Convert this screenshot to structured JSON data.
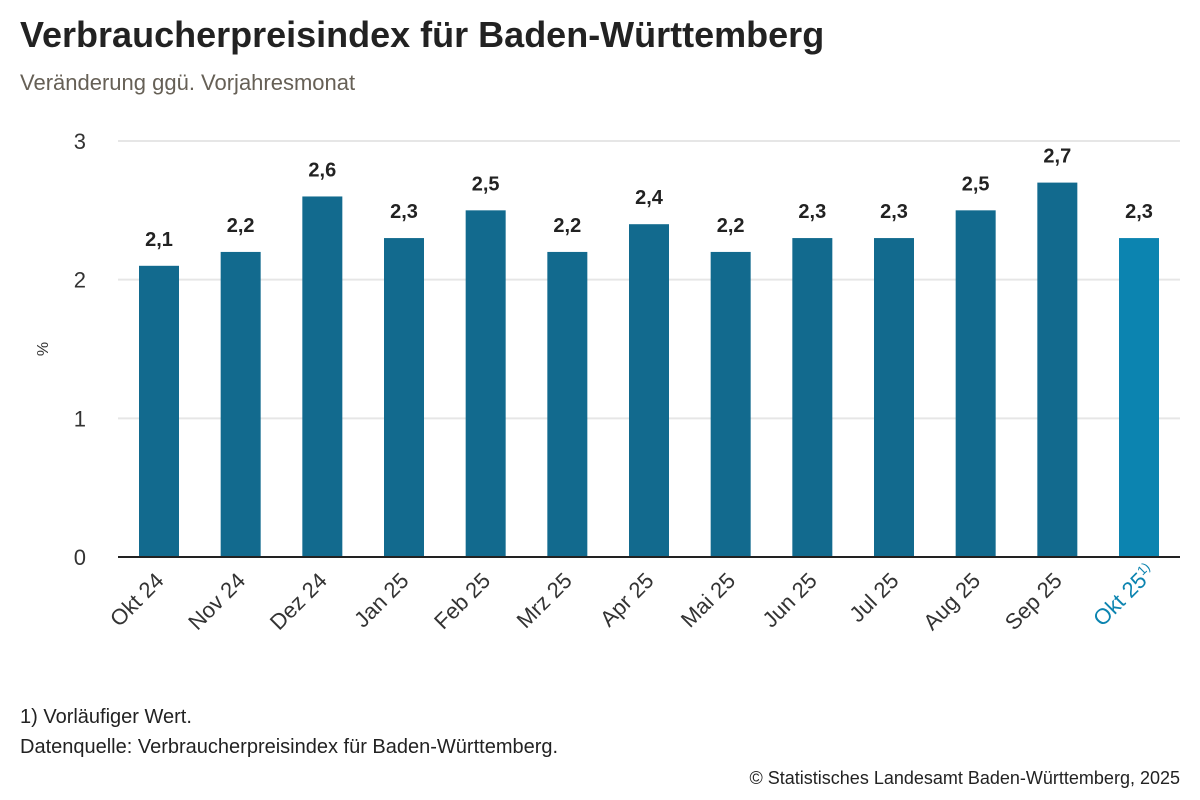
{
  "title": "Verbraucherpreisindex für Baden-Württemberg",
  "subtitle": "Veränderung ggü. Vorjahresmonat",
  "footnote": "1) Vorläufiger Wert.",
  "source": "Datenquelle: Verbraucherpreisindex für Baden-Württemberg.",
  "copyright": "© Statistisches Landesamt Baden-Württemberg, 2025",
  "chart_data": {
    "type": "bar",
    "title": "Verbraucherpreisindex für Baden-Württemberg",
    "subtitle": "Veränderung ggü. Vorjahresmonat",
    "ylabel": "%",
    "ylim": [
      0,
      3
    ],
    "yticks": [
      "0",
      "1",
      "2",
      "3"
    ],
    "grid": true,
    "categories": [
      "Okt 24",
      "Nov 24",
      "Dez 24",
      "Jan 25",
      "Feb 25",
      "Mrz 25",
      "Apr 25",
      "Mai 25",
      "Jun 25",
      "Jul 25",
      "Aug 25",
      "Sep 25",
      "Okt 25"
    ],
    "category_notes": [
      "",
      "",
      "",
      "",
      "",
      "",
      "",
      "",
      "",
      "",
      "",
      "",
      "1)"
    ],
    "values": [
      2.1,
      2.2,
      2.6,
      2.3,
      2.5,
      2.2,
      2.4,
      2.2,
      2.3,
      2.3,
      2.5,
      2.7,
      2.3
    ],
    "data_labels": [
      "2,1",
      "2,2",
      "2,6",
      "2,3",
      "2,5",
      "2,2",
      "2,4",
      "2,2",
      "2,3",
      "2,3",
      "2,5",
      "2,7",
      "2,3"
    ],
    "colors": {
      "bar": "#126a8e",
      "highlight": "#0c84b0"
    },
    "highlight_index": 12
  }
}
